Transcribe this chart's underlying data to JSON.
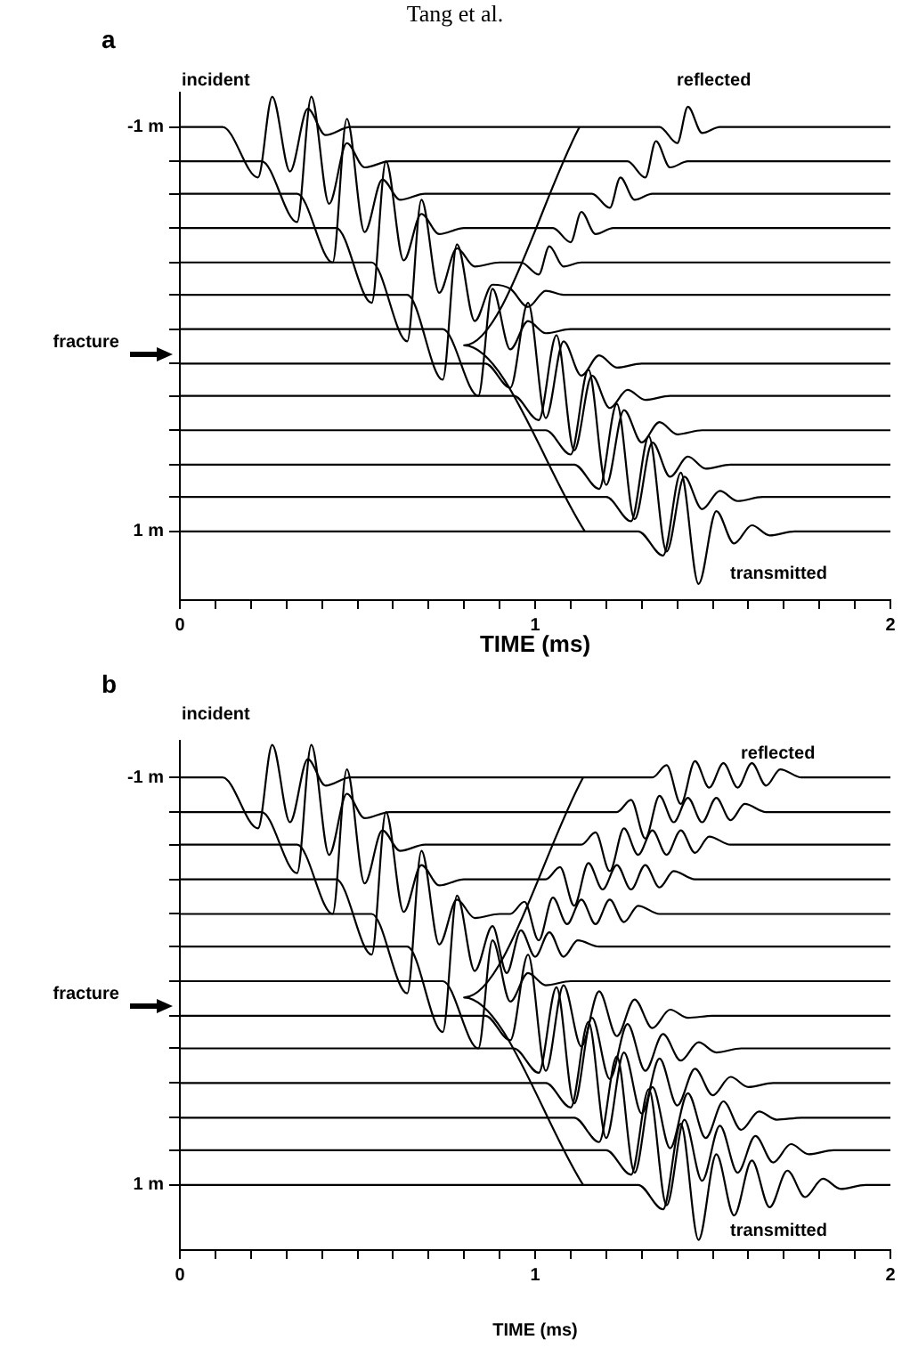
{
  "chart_data": [
    {
      "type": "line",
      "title": "a",
      "xlabel": "TIME (ms)",
      "legend": false,
      "grid": false,
      "marker": "none",
      "line_style": "solid",
      "annotations": [
        "Tang et al.",
        "incident",
        "reflected",
        "transmitted",
        "fracture"
      ],
      "xlim": [
        0,
        2
      ],
      "ylim": [
        1.34,
        -1.17
      ],
      "xticks": [
        0,
        {
          "value": 0.1,
          "label": null
        },
        {
          "value": 0.2,
          "label": null
        },
        {
          "value": 0.3,
          "label": null
        },
        {
          "value": 0.4,
          "label": null
        },
        {
          "value": 0.5,
          "label": null
        },
        {
          "value": 0.6,
          "label": null
        },
        {
          "value": 0.7,
          "label": null
        },
        {
          "value": 0.8,
          "label": null
        },
        {
          "value": 0.9,
          "label": null
        },
        1,
        {
          "value": 1.1,
          "label": null
        },
        {
          "value": 1.2,
          "label": null
        },
        {
          "value": 1.3,
          "label": null
        },
        {
          "value": 1.4,
          "label": null
        },
        {
          "value": 1.5,
          "label": null
        },
        {
          "value": 1.6,
          "label": null
        },
        {
          "value": 1.7,
          "label": null
        },
        {
          "value": 1.8,
          "label": null
        },
        {
          "value": 1.9,
          "label": null
        },
        2
      ],
      "yticks": [
        {
          "value": -1,
          "label": "-1 m"
        },
        {
          "value": -0.83,
          "label": null
        },
        {
          "value": -0.67,
          "label": null
        },
        {
          "value": -0.5,
          "label": null
        },
        {
          "value": -0.33,
          "label": null
        },
        {
          "value": -0.17,
          "label": null
        },
        {
          "value": 0,
          "label": null
        },
        {
          "value": 0.17,
          "label": null
        },
        {
          "value": 0.33,
          "label": null
        },
        {
          "value": 0.5,
          "label": null
        },
        {
          "value": 0.67,
          "label": null
        },
        {
          "value": 0.83,
          "label": null
        },
        {
          "value": 1,
          "label": "1 m"
        }
      ],
      "series": [
        {
          "color": "#000000",
          "x": [
            0,
            0.12,
            0.22,
            0.26,
            0.31,
            0.36,
            0.41,
            0.48,
            1.35,
            1.4,
            1.43,
            1.47,
            1.52,
            2
          ],
          "values": [
            -1,
            -1,
            -0.75,
            -1.15,
            -0.78,
            -1.09,
            -0.96,
            -1,
            -1,
            -0.92,
            -1.1,
            -0.97,
            -1,
            -1
          ]
        },
        {
          "color": "#000000",
          "x": [
            0,
            0.23,
            0.33,
            0.37,
            0.42,
            0.47,
            0.52,
            0.59,
            1.26,
            1.31,
            1.34,
            1.38,
            1.43,
            2
          ],
          "values": [
            -0.83,
            -0.83,
            -0.53,
            -1.15,
            -0.62,
            -0.92,
            -0.8,
            -0.83,
            -0.83,
            -0.75,
            -0.93,
            -0.8,
            -0.83,
            -0.83
          ]
        },
        {
          "color": "#000000",
          "x": [
            0,
            0.33,
            0.43,
            0.47,
            0.52,
            0.57,
            0.62,
            0.69,
            1.16,
            1.21,
            1.24,
            1.28,
            1.33,
            2
          ],
          "values": [
            -0.67,
            -0.67,
            -0.33,
            -1.04,
            -0.48,
            -0.74,
            -0.64,
            -0.67,
            -0.67,
            -0.6,
            -0.75,
            -0.64,
            -0.67,
            -0.67
          ]
        },
        {
          "color": "#000000",
          "x": [
            0,
            0.44,
            0.54,
            0.58,
            0.63,
            0.68,
            0.73,
            0.8,
            1.05,
            1.1,
            1.13,
            1.17,
            1.22,
            2
          ],
          "values": [
            -0.5,
            -0.5,
            -0.13,
            -0.83,
            -0.34,
            -0.57,
            -0.47,
            -0.5,
            -0.5,
            -0.43,
            -0.58,
            -0.47,
            -0.5,
            -0.5
          ]
        },
        {
          "color": "#000000",
          "x": [
            0,
            0.54,
            0.64,
            0.68,
            0.73,
            0.78,
            0.83,
            0.9,
            0.96,
            1.01,
            1.04,
            1.08,
            1.13,
            2
          ],
          "values": [
            -0.33,
            -0.33,
            0.06,
            -0.64,
            -0.18,
            -0.4,
            -0.31,
            -0.33,
            -0.33,
            -0.27,
            -0.41,
            -0.31,
            -0.33,
            -0.33
          ]
        },
        {
          "color": "#000000",
          "x": [
            0,
            0.64,
            0.74,
            0.78,
            0.83,
            0.88,
            0.93,
            0.98,
            1.03,
            1.08,
            2
          ],
          "values": [
            -0.17,
            -0.17,
            0.25,
            -0.42,
            -0.04,
            -0.22,
            -0.2,
            -0.11,
            -0.19,
            -0.17,
            -0.17
          ]
        },
        {
          "color": "#000000",
          "x": [
            0,
            0.74,
            0.84,
            0.88,
            0.93,
            0.98,
            1.03,
            1.1,
            2
          ],
          "values": [
            0,
            0,
            0.33,
            -0.2,
            0.1,
            -0.04,
            0.02,
            0,
            0
          ]
        },
        {
          "color": "#000000",
          "x": [
            0,
            0.86,
            0.93,
            0.98,
            1.03,
            1.08,
            1.13,
            1.18,
            1.23,
            1.3,
            2
          ],
          "values": [
            0.17,
            0.17,
            0.29,
            -0.13,
            0.44,
            0.06,
            0.23,
            0.13,
            0.19,
            0.17,
            0.17
          ]
        },
        {
          "color": "#000000",
          "x": [
            0,
            0.94,
            1.01,
            1.06,
            1.11,
            1.16,
            1.21,
            1.26,
            1.31,
            1.38,
            2
          ],
          "values": [
            0.33,
            0.33,
            0.45,
            0.03,
            0.6,
            0.23,
            0.39,
            0.3,
            0.35,
            0.33,
            0.33
          ]
        },
        {
          "color": "#000000",
          "x": [
            0,
            1.03,
            1.1,
            1.15,
            1.2,
            1.25,
            1.3,
            1.35,
            1.4,
            1.47,
            2
          ],
          "values": [
            0.5,
            0.5,
            0.62,
            0.2,
            0.77,
            0.4,
            0.56,
            0.46,
            0.52,
            0.5,
            0.5
          ]
        },
        {
          "color": "#000000",
          "x": [
            0,
            1.11,
            1.18,
            1.23,
            1.28,
            1.33,
            1.38,
            1.43,
            1.48,
            1.55,
            2
          ],
          "values": [
            0.67,
            0.67,
            0.79,
            0.37,
            0.94,
            0.56,
            0.73,
            0.63,
            0.69,
            0.67,
            0.67
          ]
        },
        {
          "color": "#000000",
          "x": [
            0,
            1.2,
            1.27,
            1.32,
            1.37,
            1.42,
            1.47,
            1.52,
            1.57,
            1.64,
            2
          ],
          "values": [
            0.83,
            0.83,
            0.95,
            0.53,
            1.1,
            0.73,
            0.89,
            0.8,
            0.85,
            0.83,
            0.83
          ]
        },
        {
          "color": "#000000",
          "x": [
            0,
            1.29,
            1.36,
            1.41,
            1.46,
            1.51,
            1.56,
            1.61,
            1.66,
            1.73,
            2
          ],
          "values": [
            1,
            1,
            1.12,
            0.71,
            1.26,
            0.9,
            1.06,
            0.97,
            1.02,
            1,
            1
          ]
        },
        {
          "color": "#000000",
          "x": [
            1.125,
            0.8,
            1.14
          ],
          "values": [
            -1,
            0.08,
            1
          ]
        }
      ]
    },
    {
      "type": "line",
      "title": "b",
      "xlabel": "TIME (ms)",
      "legend": false,
      "grid": false,
      "marker": "none",
      "line_style": "solid",
      "annotations": [
        "incident",
        "reflected",
        "transmitted",
        "fracture"
      ],
      "xlim": [
        0,
        2
      ],
      "ylim": [
        1.32,
        -1.18
      ],
      "xticks": [
        0,
        {
          "value": 0.1,
          "label": null
        },
        {
          "value": 0.2,
          "label": null
        },
        {
          "value": 0.3,
          "label": null
        },
        {
          "value": 0.4,
          "label": null
        },
        {
          "value": 0.5,
          "label": null
        },
        {
          "value": 0.6,
          "label": null
        },
        {
          "value": 0.7,
          "label": null
        },
        {
          "value": 0.8,
          "label": null
        },
        {
          "value": 0.9,
          "label": null
        },
        1,
        {
          "value": 1.1,
          "label": null
        },
        {
          "value": 1.2,
          "label": null
        },
        {
          "value": 1.3,
          "label": null
        },
        {
          "value": 1.4,
          "label": null
        },
        {
          "value": 1.5,
          "label": null
        },
        {
          "value": 1.6,
          "label": null
        },
        {
          "value": 1.7,
          "label": null
        },
        {
          "value": 1.8,
          "label": null
        },
        {
          "value": 1.9,
          "label": null
        },
        2
      ],
      "yticks": [
        {
          "value": -1,
          "label": "-1 m"
        },
        {
          "value": -0.83,
          "label": null
        },
        {
          "value": -0.67,
          "label": null
        },
        {
          "value": -0.5,
          "label": null
        },
        {
          "value": -0.33,
          "label": null
        },
        {
          "value": -0.17,
          "label": null
        },
        {
          "value": 0,
          "label": null
        },
        {
          "value": 0.17,
          "label": null
        },
        {
          "value": 0.33,
          "label": null
        },
        {
          "value": 0.5,
          "label": null
        },
        {
          "value": 0.67,
          "label": null
        },
        {
          "value": 0.83,
          "label": null
        },
        {
          "value": 1,
          "label": "1 m"
        }
      ],
      "series": [
        {
          "color": "#000000",
          "x": [
            0,
            0.12,
            0.22,
            0.26,
            0.31,
            0.36,
            0.41,
            0.48,
            1.33,
            1.37,
            1.41,
            1.45,
            1.49,
            1.53,
            1.57,
            1.61,
            1.65,
            1.69,
            1.75,
            2
          ],
          "values": [
            -1,
            -1,
            -0.75,
            -1.16,
            -0.78,
            -1.09,
            -0.96,
            -1,
            -1,
            -1.06,
            -0.87,
            -1.08,
            -0.95,
            -1.07,
            -0.95,
            -1.07,
            -0.96,
            -1.04,
            -1,
            -1
          ]
        },
        {
          "color": "#000000",
          "x": [
            0,
            0.23,
            0.33,
            0.37,
            0.42,
            0.47,
            0.52,
            0.59,
            1.23,
            1.27,
            1.31,
            1.35,
            1.39,
            1.43,
            1.47,
            1.51,
            1.55,
            1.59,
            1.65,
            2
          ],
          "values": [
            -0.83,
            -0.83,
            -0.53,
            -1.16,
            -0.62,
            -0.92,
            -0.8,
            -0.83,
            -0.83,
            -0.89,
            -0.7,
            -0.91,
            -0.78,
            -0.9,
            -0.78,
            -0.9,
            -0.79,
            -0.87,
            -0.83,
            -0.83
          ]
        },
        {
          "color": "#000000",
          "x": [
            0,
            0.33,
            0.43,
            0.47,
            0.52,
            0.57,
            0.62,
            0.69,
            1.13,
            1.17,
            1.21,
            1.25,
            1.29,
            1.33,
            1.37,
            1.41,
            1.45,
            1.49,
            1.55,
            2
          ],
          "values": [
            -0.67,
            -0.67,
            -0.33,
            -1.04,
            -0.48,
            -0.74,
            -0.64,
            -0.67,
            -0.67,
            -0.73,
            -0.54,
            -0.75,
            -0.62,
            -0.74,
            -0.62,
            -0.74,
            -0.63,
            -0.71,
            -0.67,
            -0.67
          ]
        },
        {
          "color": "#000000",
          "x": [
            0,
            0.44,
            0.54,
            0.58,
            0.63,
            0.68,
            0.73,
            0.8,
            1.03,
            1.07,
            1.11,
            1.15,
            1.19,
            1.23,
            1.27,
            1.31,
            1.35,
            1.39,
            1.45,
            2
          ],
          "values": [
            -0.5,
            -0.5,
            -0.13,
            -0.83,
            -0.34,
            -0.57,
            -0.47,
            -0.5,
            -0.5,
            -0.56,
            -0.37,
            -0.58,
            -0.45,
            -0.57,
            -0.45,
            -0.57,
            -0.46,
            -0.54,
            -0.5,
            -0.5
          ]
        },
        {
          "color": "#000000",
          "x": [
            0,
            0.54,
            0.64,
            0.68,
            0.73,
            0.78,
            0.83,
            0.9,
            0.93,
            0.97,
            1.01,
            1.05,
            1.09,
            1.13,
            1.17,
            1.21,
            1.25,
            1.29,
            1.35,
            2
          ],
          "values": [
            -0.33,
            -0.33,
            0.06,
            -0.64,
            -0.18,
            -0.4,
            -0.31,
            -0.33,
            -0.33,
            -0.39,
            -0.2,
            -0.41,
            -0.28,
            -0.4,
            -0.28,
            -0.4,
            -0.29,
            -0.37,
            -0.33,
            -0.33
          ]
        },
        {
          "color": "#000000",
          "x": [
            0,
            0.64,
            0.74,
            0.78,
            0.83,
            0.88,
            0.92,
            0.96,
            1,
            1.04,
            1.08,
            1.12,
            1.18,
            2
          ],
          "values": [
            -0.17,
            -0.17,
            0.25,
            -0.42,
            -0.05,
            -0.27,
            -0.04,
            -0.25,
            -0.12,
            -0.24,
            -0.12,
            -0.2,
            -0.17,
            -0.17
          ]
        },
        {
          "color": "#000000",
          "x": [
            0,
            0.74,
            0.84,
            0.88,
            0.93,
            0.98,
            1.03,
            1.1,
            2
          ],
          "values": [
            0,
            0,
            0.33,
            -0.2,
            0.1,
            -0.04,
            0.02,
            0,
            0
          ]
        },
        {
          "color": "#000000",
          "x": [
            0,
            0.86,
            0.93,
            0.98,
            1.03,
            1.08,
            1.13,
            1.18,
            1.23,
            1.28,
            1.33,
            1.38,
            1.43,
            1.5,
            2
          ],
          "values": [
            0.17,
            0.17,
            0.29,
            -0.13,
            0.44,
            0.02,
            0.32,
            0.05,
            0.27,
            0.09,
            0.23,
            0.14,
            0.18,
            0.17,
            0.17
          ]
        },
        {
          "color": "#000000",
          "x": [
            0,
            0.94,
            1.01,
            1.06,
            1.11,
            1.16,
            1.21,
            1.26,
            1.31,
            1.36,
            1.41,
            1.46,
            1.51,
            1.58,
            2
          ],
          "values": [
            0.33,
            0.33,
            0.45,
            0.03,
            0.6,
            0.18,
            0.48,
            0.21,
            0.44,
            0.26,
            0.39,
            0.3,
            0.35,
            0.33,
            0.33
          ]
        },
        {
          "color": "#000000",
          "x": [
            0,
            1.03,
            1.1,
            1.15,
            1.2,
            1.25,
            1.3,
            1.35,
            1.4,
            1.45,
            1.5,
            1.55,
            1.6,
            1.67,
            2
          ],
          "values": [
            0.5,
            0.5,
            0.62,
            0.2,
            0.77,
            0.35,
            0.65,
            0.38,
            0.61,
            0.43,
            0.56,
            0.47,
            0.52,
            0.5,
            0.5
          ]
        },
        {
          "color": "#000000",
          "x": [
            0,
            1.11,
            1.18,
            1.23,
            1.28,
            1.33,
            1.38,
            1.43,
            1.48,
            1.53,
            1.58,
            1.63,
            1.68,
            1.75,
            2
          ],
          "values": [
            0.67,
            0.67,
            0.79,
            0.37,
            0.94,
            0.52,
            0.82,
            0.55,
            0.77,
            0.59,
            0.73,
            0.64,
            0.68,
            0.67,
            0.67
          ]
        },
        {
          "color": "#000000",
          "x": [
            0,
            1.2,
            1.27,
            1.32,
            1.37,
            1.42,
            1.47,
            1.52,
            1.57,
            1.62,
            1.67,
            1.72,
            1.77,
            1.84,
            2
          ],
          "values": [
            0.83,
            0.83,
            0.95,
            0.53,
            1.1,
            0.68,
            0.98,
            0.71,
            0.94,
            0.76,
            0.89,
            0.8,
            0.85,
            0.83,
            0.83
          ]
        },
        {
          "color": "#000000",
          "x": [
            0,
            1.29,
            1.36,
            1.41,
            1.46,
            1.51,
            1.56,
            1.61,
            1.66,
            1.71,
            1.76,
            1.81,
            1.86,
            1.93,
            2
          ],
          "values": [
            1,
            1,
            1.12,
            0.7,
            1.27,
            0.85,
            1.15,
            0.88,
            1.11,
            0.93,
            1.06,
            0.97,
            1.02,
            1,
            1
          ]
        },
        {
          "color": "#000000",
          "x": [
            1.135,
            0.8,
            1.135
          ],
          "values": [
            -1,
            0.08,
            1
          ]
        }
      ]
    }
  ]
}
